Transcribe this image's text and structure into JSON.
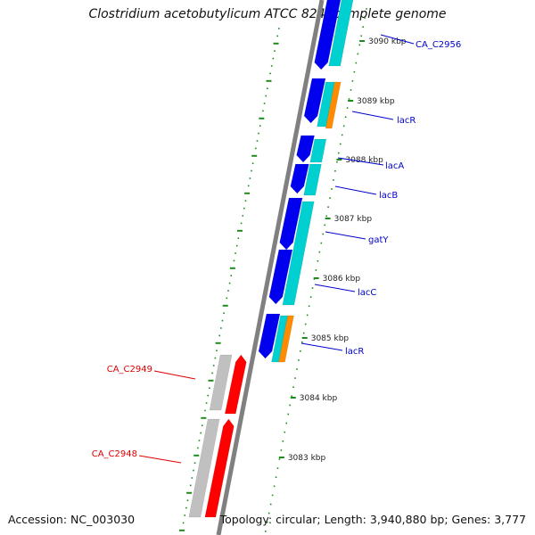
{
  "title": "Clostridium acetobutylicum ATCC 824, complete genome",
  "footer": {
    "accession": "Accession: NC_003030",
    "topology": "Topology: circular; Length: 3,940,880 bp; Genes: 3,777"
  },
  "colors": {
    "backbone": "#808080",
    "tick_dots": "#1e8a1e",
    "strand_forward_block": "#0000ee",
    "strand_forward_band": "#00d0d0",
    "strand_forward_rna": "#ff8c00",
    "strand_reverse_block": "#c0c0c0",
    "strand_reverse_band": "#ff0000",
    "label_forward": "#0000cc",
    "label_reverse": "#dd0000"
  },
  "ticks": [
    {
      "label": "3090 kbp"
    },
    {
      "label": "3089 kbp"
    },
    {
      "label": "3088 kbp"
    },
    {
      "label": "3087 kbp"
    },
    {
      "label": "3086 kbp"
    },
    {
      "label": "3085 kbp"
    },
    {
      "label": "3084 kbp"
    },
    {
      "label": "3083 kbp"
    }
  ],
  "genes": [
    {
      "name": "CA_C2956",
      "strand": "forward"
    },
    {
      "name": "lacR",
      "strand": "forward"
    },
    {
      "name": "lacA",
      "strand": "forward"
    },
    {
      "name": "lacB",
      "strand": "forward"
    },
    {
      "name": "gatY",
      "strand": "forward"
    },
    {
      "name": "lacC",
      "strand": "forward"
    },
    {
      "name": "lacR",
      "strand": "forward"
    },
    {
      "name": "CA_C2949",
      "strand": "reverse"
    },
    {
      "name": "CA_C2948",
      "strand": "reverse"
    }
  ]
}
